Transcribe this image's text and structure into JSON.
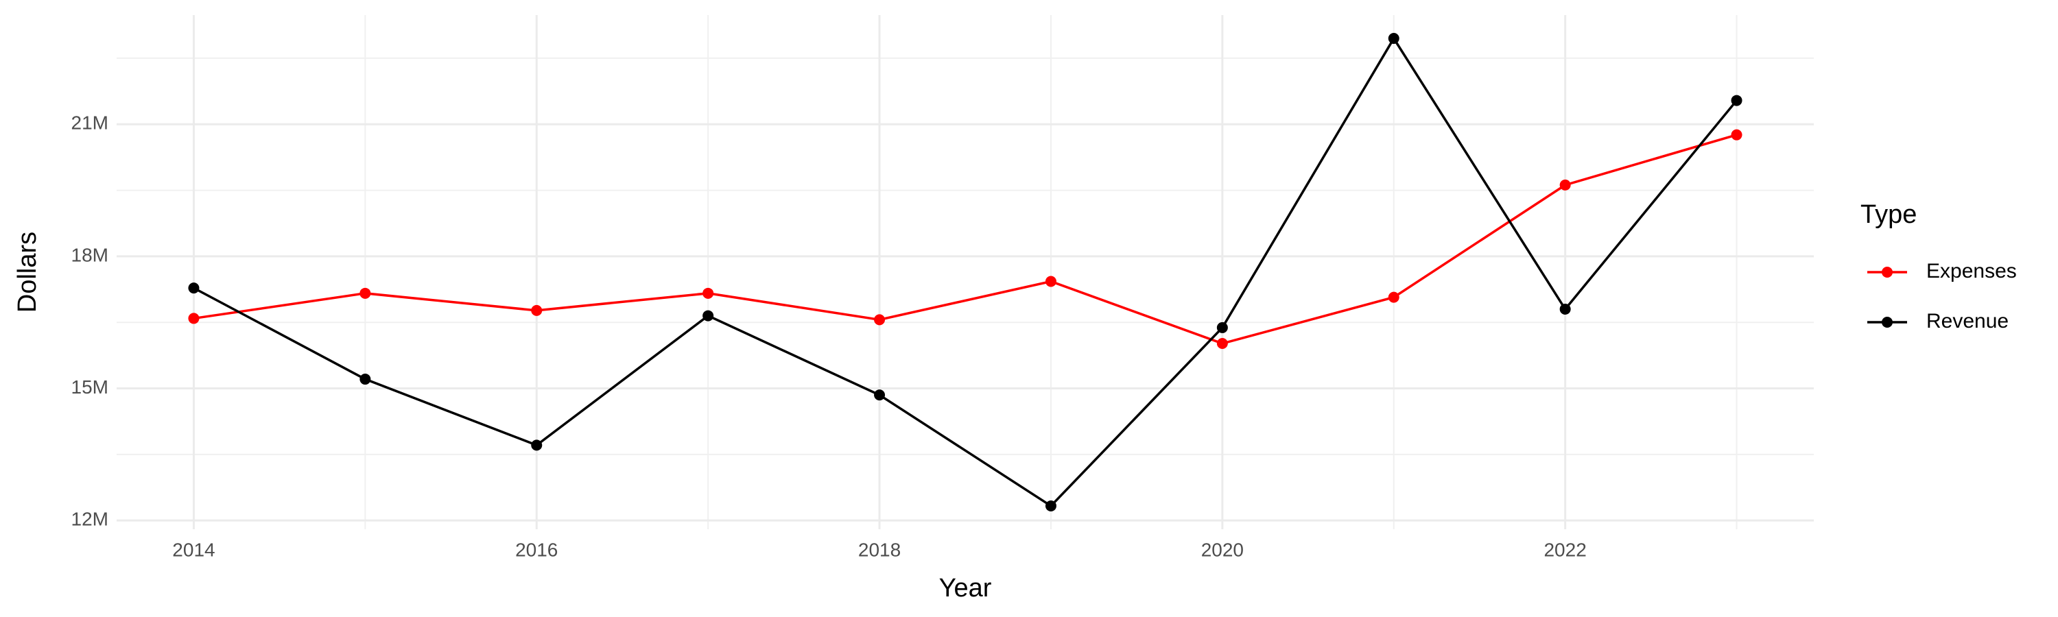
{
  "chart_data": {
    "type": "line",
    "x_label": "Year",
    "y_label": "Dollars",
    "legend_title": "Type",
    "legend_position": "right",
    "grid": true,
    "x": [
      2014,
      2015,
      2016,
      2017,
      2018,
      2019,
      2020,
      2021,
      2022,
      2023
    ],
    "series": [
      {
        "name": "Expenses",
        "color": "#ff0000",
        "values": [
          16590000,
          17160000,
          16770000,
          17160000,
          16560000,
          17430000,
          16020000,
          17070000,
          19620000,
          20760000
        ]
      },
      {
        "name": "Revenue",
        "color": "#000000",
        "values": [
          17280000,
          15210000,
          13710000,
          16650000,
          14850000,
          12330000,
          16380000,
          22950000,
          16800000,
          21540000
        ]
      }
    ],
    "xlim": [
      2013.55,
      2023.45
    ],
    "xticks": [
      2014,
      2016,
      2018,
      2020,
      2022
    ],
    "ylim": [
      11800000,
      23480000
    ],
    "yticks": [
      {
        "value": 12000000,
        "label": "12M"
      },
      {
        "value": 15000000,
        "label": "15M"
      },
      {
        "value": 18000000,
        "label": "18M"
      },
      {
        "value": 21000000,
        "label": "21M"
      }
    ]
  }
}
